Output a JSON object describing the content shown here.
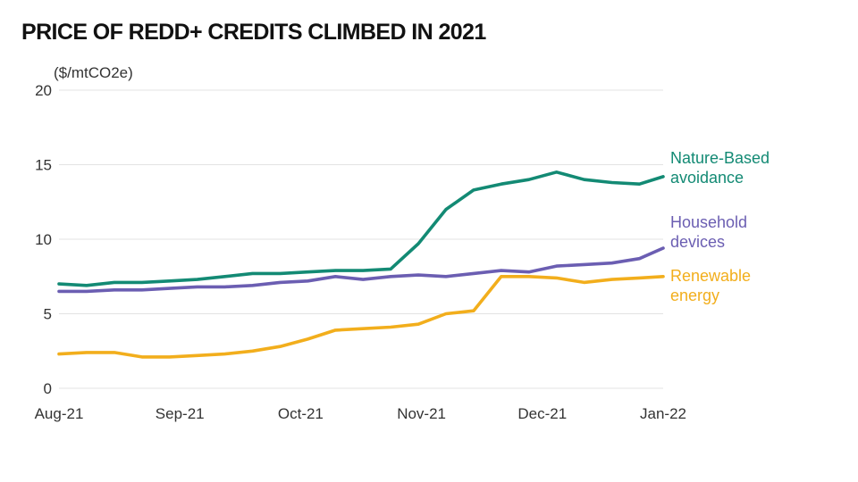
{
  "chart_data": {
    "type": "line",
    "title": "PRICE OF REDD+ CREDITS CLIMBED IN 2021",
    "unit_label": "($/mtCO2e)",
    "xlabel": "",
    "ylabel": "",
    "ylim": [
      0,
      20
    ],
    "yticks": [
      "0",
      "5",
      "10",
      "15",
      "20"
    ],
    "x_tick_labels": [
      "Aug-21",
      "Sep-21",
      "Oct-21",
      "Nov-21",
      "Dec-21",
      "Jan-22"
    ],
    "x": [
      "2021-08-01",
      "2021-08-08",
      "2021-08-15",
      "2021-08-22",
      "2021-08-29",
      "2021-09-05",
      "2021-09-12",
      "2021-09-19",
      "2021-09-26",
      "2021-10-03",
      "2021-10-10",
      "2021-10-17",
      "2021-10-24",
      "2021-10-31",
      "2021-11-07",
      "2021-11-14",
      "2021-11-21",
      "2021-11-28",
      "2021-12-05",
      "2021-12-12",
      "2021-12-19",
      "2021-12-26",
      "2022-01-01"
    ],
    "grid": true,
    "legend": "inline-right",
    "series": [
      {
        "name": "Nature-Based avoidance",
        "color": "#138a74",
        "values": [
          7.0,
          6.9,
          7.1,
          7.1,
          7.2,
          7.3,
          7.5,
          7.7,
          7.7,
          7.8,
          7.9,
          7.9,
          8.0,
          9.7,
          12.0,
          13.3,
          13.7,
          14.0,
          14.5,
          14.0,
          13.8,
          13.7,
          14.2
        ]
      },
      {
        "name": "Household devices",
        "color": "#6b5eb2",
        "values": [
          6.5,
          6.5,
          6.6,
          6.6,
          6.7,
          6.8,
          6.8,
          6.9,
          7.1,
          7.2,
          7.5,
          7.3,
          7.5,
          7.6,
          7.5,
          7.7,
          7.9,
          7.8,
          8.2,
          8.3,
          8.4,
          8.7,
          9.4
        ]
      },
      {
        "name": "Renewable energy",
        "color": "#f2ae1c",
        "values": [
          2.3,
          2.4,
          2.4,
          2.1,
          2.1,
          2.2,
          2.3,
          2.5,
          2.8,
          3.3,
          3.9,
          4.0,
          4.1,
          4.3,
          5.0,
          5.2,
          7.5,
          7.5,
          7.4,
          7.1,
          7.3,
          7.4,
          7.5
        ]
      }
    ]
  }
}
